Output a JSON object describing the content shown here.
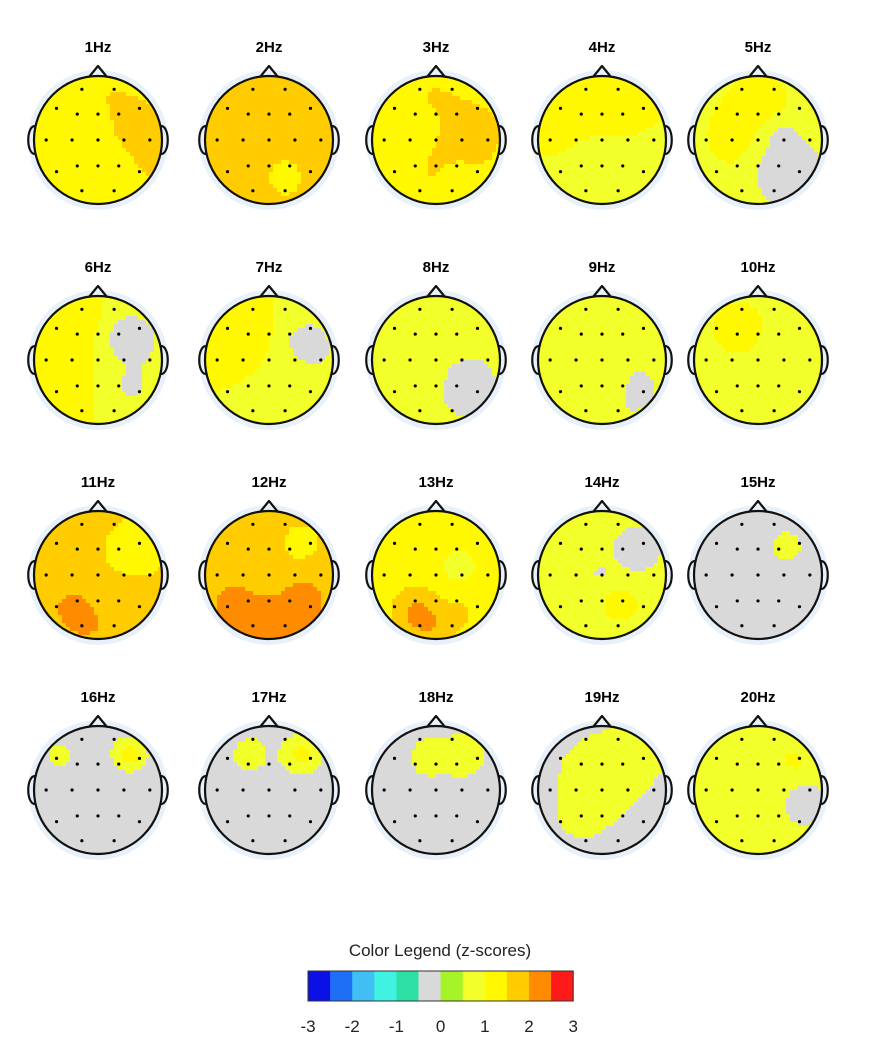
{
  "chart_data": {
    "type": "heatmap",
    "description_kind": "topographic-scalp-maps",
    "maps": [
      {
        "title": "1Hz",
        "blobs": [
          [
            0.55,
            0.12,
            0.35,
            2.0
          ],
          [
            0.1,
            -0.05,
            0.3,
            2.4
          ],
          [
            0.05,
            0.1,
            0.4,
            2.0
          ],
          [
            -0.1,
            -0.35,
            0.5,
            1.5
          ],
          [
            0.2,
            0.55,
            0.4,
            1.2
          ],
          [
            -0.55,
            0.0,
            0.4,
            1.0
          ]
        ],
        "base": 1.4
      },
      {
        "title": "2Hz",
        "blobs": [
          [
            0.55,
            0.15,
            0.35,
            2.2
          ],
          [
            0.05,
            -0.05,
            0.35,
            2.4
          ],
          [
            0.1,
            0.1,
            0.45,
            2.2
          ],
          [
            -0.05,
            -0.4,
            0.5,
            2.0
          ],
          [
            0.25,
            0.55,
            0.4,
            1.4
          ]
        ],
        "base": 1.6
      },
      {
        "title": "3Hz",
        "blobs": [
          [
            0.55,
            -0.1,
            0.3,
            1.8
          ],
          [
            0.15,
            0.2,
            0.35,
            2.2
          ],
          [
            -0.05,
            -0.45,
            0.4,
            1.6
          ],
          [
            0.35,
            0.6,
            0.3,
            1.3
          ],
          [
            -0.5,
            0.0,
            0.35,
            1.0
          ]
        ],
        "base": 1.3
      },
      {
        "title": "4Hz",
        "blobs": [
          [
            -0.3,
            -0.05,
            0.35,
            1.5
          ],
          [
            0.0,
            -0.55,
            0.3,
            1.3
          ],
          [
            0.2,
            0.15,
            0.3,
            1.2
          ],
          [
            -0.15,
            0.45,
            0.4,
            0.6
          ],
          [
            0.55,
            0.55,
            0.3,
            0.5
          ]
        ],
        "base": 1.0
      },
      {
        "title": "5Hz",
        "blobs": [
          [
            -0.2,
            -0.1,
            0.35,
            1.3
          ],
          [
            0.05,
            -0.5,
            0.25,
            1.6
          ],
          [
            0.5,
            0.55,
            0.35,
            -0.3
          ],
          [
            0.4,
            0.0,
            0.3,
            0.4
          ]
        ],
        "base": 0.9
      },
      {
        "title": "6Hz",
        "blobs": [
          [
            -0.25,
            -0.1,
            0.35,
            1.3
          ],
          [
            -0.05,
            -0.55,
            0.25,
            1.5
          ],
          [
            0.5,
            -0.3,
            0.4,
            0.2
          ],
          [
            0.5,
            0.4,
            0.3,
            0.4
          ],
          [
            -0.5,
            0.3,
            0.4,
            1.1
          ]
        ],
        "base": 1.0
      },
      {
        "title": "7Hz",
        "blobs": [
          [
            -0.25,
            -0.3,
            0.3,
            1.4
          ],
          [
            0.6,
            -0.2,
            0.35,
            0.2
          ],
          [
            0.3,
            0.5,
            0.35,
            0.7
          ],
          [
            -0.4,
            0.3,
            0.4,
            1.0
          ]
        ],
        "base": 1.0
      },
      {
        "title": "8Hz",
        "blobs": [
          [
            -0.05,
            -0.35,
            0.35,
            1.0
          ],
          [
            0.45,
            0.4,
            0.35,
            0.2
          ],
          [
            -0.4,
            0.2,
            0.4,
            0.7
          ]
        ],
        "base": 0.7
      },
      {
        "title": "9Hz",
        "blobs": [
          [
            -0.05,
            -0.35,
            0.3,
            1.0
          ],
          [
            0.45,
            0.45,
            0.3,
            0.3
          ],
          [
            0.0,
            0.3,
            0.35,
            0.7
          ]
        ],
        "base": 0.65
      },
      {
        "title": "10Hz",
        "blobs": [
          [
            -0.3,
            -0.5,
            0.2,
            1.3
          ],
          [
            0.65,
            -0.2,
            0.25,
            0.6
          ],
          [
            0.0,
            0.0,
            0.5,
            1.0
          ]
        ],
        "base": 0.95
      },
      {
        "title": "11Hz",
        "blobs": [
          [
            -0.2,
            0.5,
            0.3,
            2.8
          ],
          [
            0.2,
            0.35,
            0.4,
            1.9
          ],
          [
            0.0,
            -0.2,
            0.45,
            1.6
          ],
          [
            0.6,
            -0.4,
            0.3,
            1.2
          ]
        ],
        "base": 1.6
      },
      {
        "title": "12Hz",
        "blobs": [
          [
            0.0,
            0.5,
            0.5,
            2.9
          ],
          [
            0.0,
            0.15,
            0.45,
            2.1
          ],
          [
            -0.1,
            -0.3,
            0.45,
            1.7
          ],
          [
            0.5,
            -0.5,
            0.25,
            1.3
          ]
        ],
        "base": 1.7
      },
      {
        "title": "13Hz",
        "blobs": [
          [
            -0.15,
            0.55,
            0.3,
            2.7
          ],
          [
            0.2,
            0.35,
            0.35,
            1.8
          ],
          [
            -0.4,
            -0.2,
            0.35,
            1.4
          ],
          [
            0.35,
            -0.1,
            0.35,
            0.9
          ]
        ],
        "base": 1.2
      },
      {
        "title": "14Hz",
        "blobs": [
          [
            0.0,
            0.0,
            0.15,
            0.2
          ],
          [
            0.3,
            0.45,
            0.35,
            1.1
          ],
          [
            -0.3,
            -0.5,
            0.25,
            0.7
          ],
          [
            0.55,
            -0.4,
            0.25,
            0.1
          ]
        ],
        "base": 0.7
      },
      {
        "title": "15Hz",
        "blobs": [
          [
            0.45,
            -0.45,
            0.2,
            0.8
          ]
        ],
        "base": 0.1
      },
      {
        "title": "16Hz",
        "blobs": [
          [
            0.5,
            -0.55,
            0.2,
            1.2
          ],
          [
            -0.6,
            -0.55,
            0.25,
            0.6
          ]
        ],
        "base": 0.1
      },
      {
        "title": "17Hz",
        "blobs": [
          [
            0.5,
            -0.55,
            0.22,
            1.2
          ],
          [
            -0.3,
            -0.55,
            0.35,
            0.6
          ],
          [
            -0.65,
            -0.3,
            0.25,
            0.5
          ]
        ],
        "base": 0.15
      },
      {
        "title": "18Hz",
        "blobs": [
          [
            0.45,
            -0.55,
            0.22,
            1.2
          ],
          [
            -0.1,
            -0.5,
            0.4,
            0.6
          ],
          [
            -0.6,
            -0.1,
            0.3,
            0.5
          ],
          [
            0.3,
            -0.2,
            0.3,
            0.5
          ]
        ],
        "base": 0.15
      },
      {
        "title": "19Hz",
        "blobs": [
          [
            0.5,
            -0.55,
            0.25,
            1.1
          ],
          [
            0.0,
            -0.2,
            0.5,
            0.7
          ],
          [
            -0.3,
            0.4,
            0.3,
            0.6
          ],
          [
            0.4,
            0.4,
            0.3,
            0.5
          ]
        ],
        "base": 0.35
      },
      {
        "title": "20Hz",
        "blobs": [
          [
            0.5,
            -0.4,
            0.25,
            1.2
          ],
          [
            -0.5,
            -0.3,
            0.3,
            1.0
          ],
          [
            0.0,
            0.5,
            0.3,
            0.7
          ],
          [
            0.7,
            0.2,
            0.2,
            0.1
          ],
          [
            0.0,
            0.0,
            0.4,
            0.6
          ]
        ],
        "base": 0.6
      }
    ],
    "legend": {
      "title": "Color Legend (z-scores)",
      "ticks": [
        "-3",
        "-2",
        "-1",
        "0",
        "1",
        "2",
        "3"
      ],
      "colors": [
        "#0a10e6",
        "#1e6ff5",
        "#3fbff4",
        "#3ff2e2",
        "#2fe0a6",
        "#d9d9d9",
        "#a6f32a",
        "#f2ff2a",
        "#fff800",
        "#ffcc00",
        "#ff8c00",
        "#ff1a1a"
      ]
    }
  }
}
